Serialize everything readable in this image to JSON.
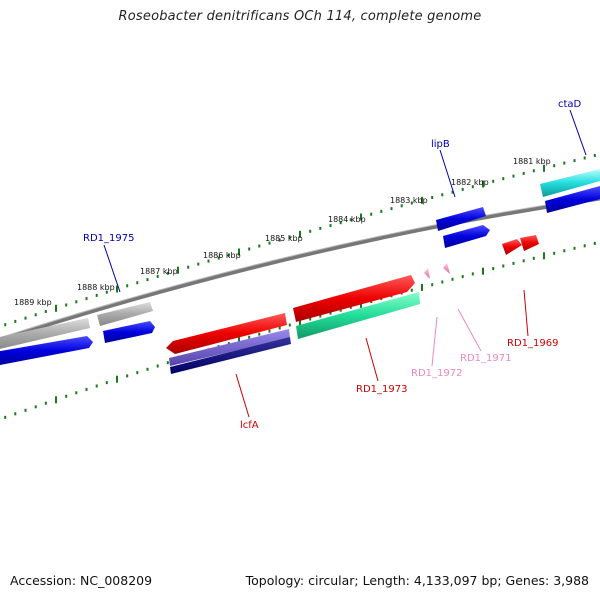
{
  "title": "Roseobacter denitrificans OCh 114, complete genome",
  "footer": {
    "accession": "Accession: NC_008209",
    "topology": "Topology: circular; Length: 4,133,097 bp; Genes: 3,988"
  },
  "scale_labels": [
    "1881 kbp",
    "1882 kbp",
    "1883 kbp",
    "1884 kbp",
    "1885 kbp",
    "1886 kbp",
    "1887 kbp",
    "1888 kbp",
    "1889 kbp"
  ],
  "gene_labels": {
    "ctaD": "ctaD",
    "lipB": "lipB",
    "rd1_1975": "RD1_1975",
    "lcfA": "lcfA",
    "rd1_1973": "RD1_1973",
    "rd1_1972": "RD1_1972",
    "rd1_1971": "RD1_1971",
    "rd1_1969": "RD1_1969"
  },
  "colors": {
    "backbone": "#777777",
    "scale_ticks": "#1a7a1a",
    "blue": "#0000dd",
    "red": "#dd0000",
    "cyan": "#22dddd",
    "grey": "#aaaaaa",
    "teal": "#22dd99",
    "purple": "#6655bb",
    "navy": "#000077",
    "pink": "#ee88bb",
    "label_blue": "#0000aa",
    "label_red": "#cc0000",
    "label_pink": "#ee88bb"
  }
}
